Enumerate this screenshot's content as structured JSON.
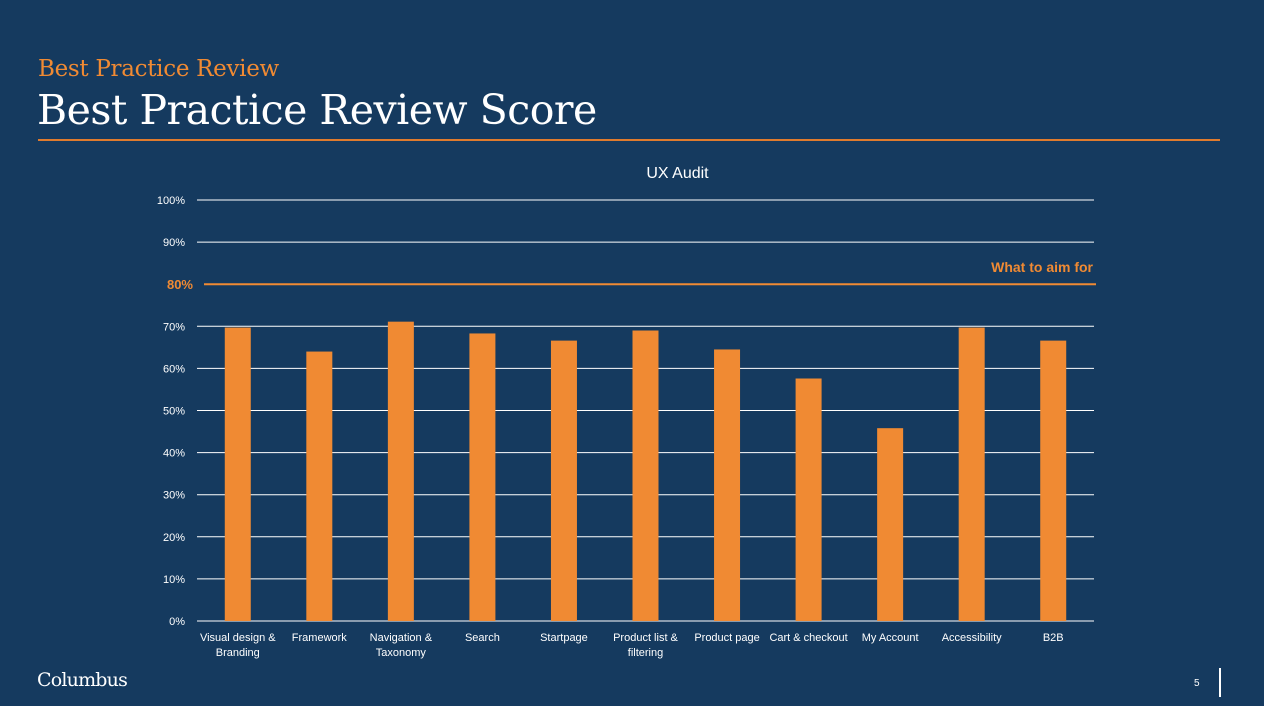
{
  "slide": {
    "kicker": "Best Practice Review",
    "title": "Best Practice Review Score",
    "logo": "Columbus",
    "page_number": "5"
  },
  "colors": {
    "background": "#153a5f",
    "accent": "#f08a33",
    "bar": "#f08a33",
    "gridline": "#ffffff",
    "text": "#ffffff"
  },
  "chart_data": {
    "type": "bar",
    "title": "UX Audit",
    "categories": [
      [
        "Visual design &",
        "Branding"
      ],
      [
        "Framework"
      ],
      [
        "Navigation &",
        "Taxonomy"
      ],
      [
        "Search"
      ],
      [
        "Startpage"
      ],
      [
        "Product list &",
        "filtering"
      ],
      [
        "Product page"
      ],
      [
        "Cart & checkout"
      ],
      [
        "My Account"
      ],
      [
        "Accessibility"
      ],
      [
        "B2B"
      ]
    ],
    "values": [
      69.7,
      64,
      71.1,
      68.3,
      66.6,
      69,
      64.5,
      57.6,
      45.8,
      69.7,
      66.6
    ],
    "ylim": [
      0,
      100
    ],
    "yticks": [
      0,
      10,
      20,
      30,
      40,
      50,
      60,
      70,
      90,
      100
    ],
    "ytick_labels": [
      "0%",
      "10%",
      "20%",
      "30%",
      "40%",
      "50%",
      "60%",
      "70%",
      "90%",
      "100%"
    ],
    "grid": true,
    "target": {
      "value": 80,
      "label": "80%",
      "text": "What to aim for"
    }
  }
}
